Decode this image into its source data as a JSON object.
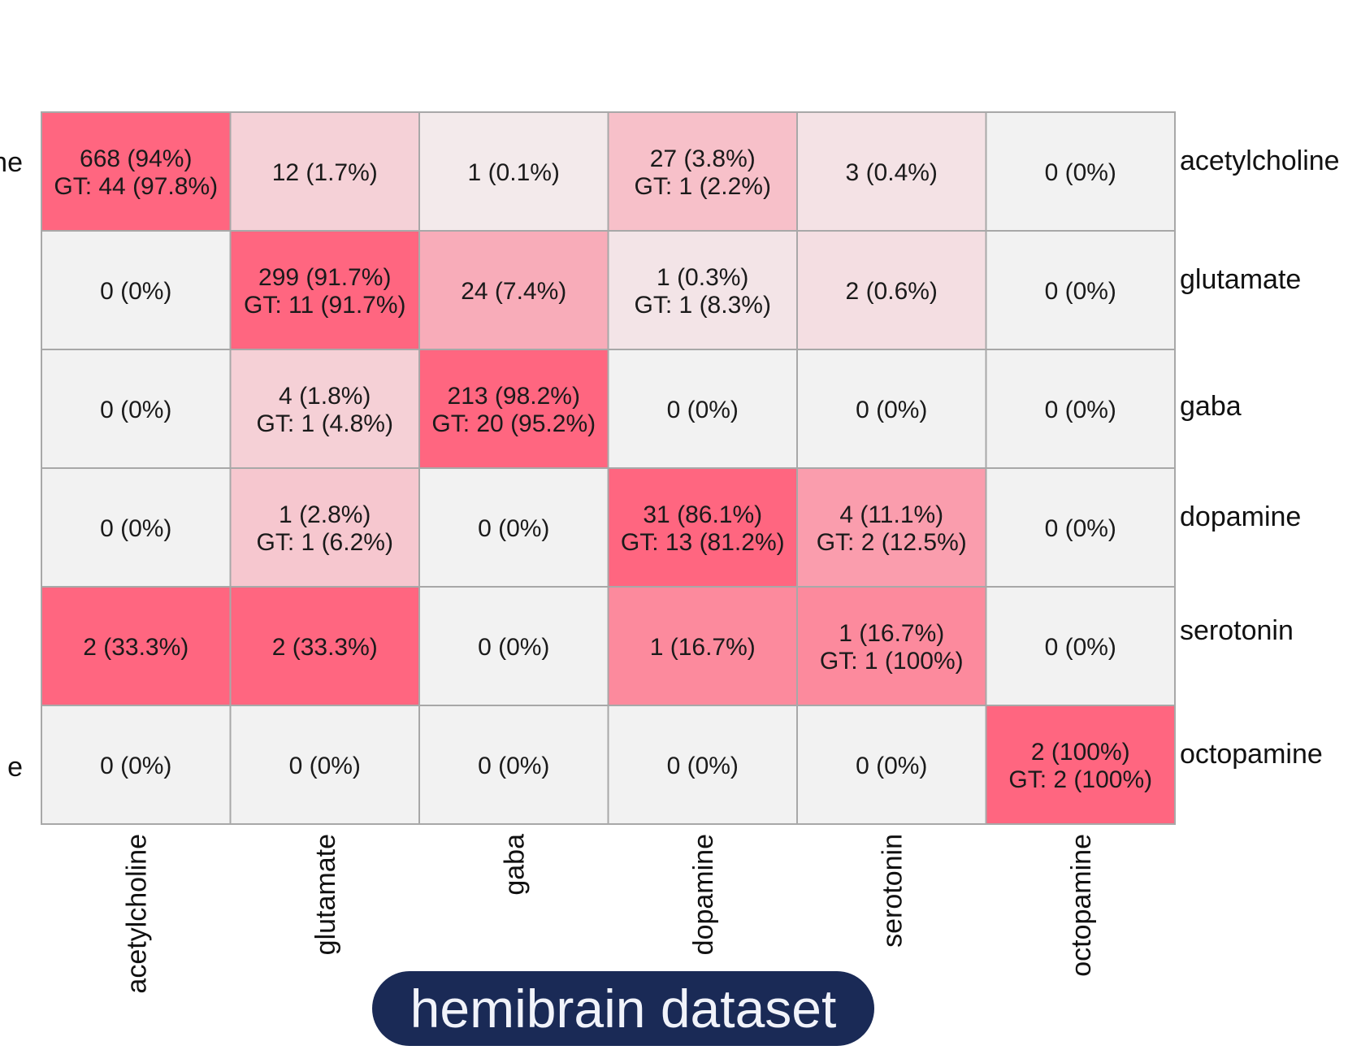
{
  "chart_data": {
    "type": "heatmap",
    "title": "hemibrain dataset",
    "row_labels": [
      "acetylcholine",
      "glutamate",
      "gaba",
      "dopamine",
      "serotonin",
      "octopamine"
    ],
    "col_labels": [
      "acetylcholine",
      "glutamate",
      "gaba",
      "dopamine",
      "serotonin",
      "octopamine"
    ],
    "left_labels_partial": [
      "ne",
      "",
      "",
      "",
      "",
      "e"
    ],
    "cells": [
      [
        {
          "count": 668,
          "pct": "94%",
          "gt": "44 (97.8%)"
        },
        {
          "count": 12,
          "pct": "1.7%",
          "gt": null
        },
        {
          "count": 1,
          "pct": "0.1%",
          "gt": null
        },
        {
          "count": 27,
          "pct": "3.8%",
          "gt": "1 (2.2%)"
        },
        {
          "count": 3,
          "pct": "0.4%",
          "gt": null
        },
        {
          "count": 0,
          "pct": "0%",
          "gt": null
        }
      ],
      [
        {
          "count": 0,
          "pct": "0%",
          "gt": null
        },
        {
          "count": 299,
          "pct": "91.7%",
          "gt": "11 (91.7%)"
        },
        {
          "count": 24,
          "pct": "7.4%",
          "gt": null
        },
        {
          "count": 1,
          "pct": "0.3%",
          "gt": "1 (8.3%)"
        },
        {
          "count": 2,
          "pct": "0.6%",
          "gt": null
        },
        {
          "count": 0,
          "pct": "0%",
          "gt": null
        }
      ],
      [
        {
          "count": 0,
          "pct": "0%",
          "gt": null
        },
        {
          "count": 4,
          "pct": "1.8%",
          "gt": "1 (4.8%)"
        },
        {
          "count": 213,
          "pct": "98.2%",
          "gt": "20 (95.2%)"
        },
        {
          "count": 0,
          "pct": "0%",
          "gt": null
        },
        {
          "count": 0,
          "pct": "0%",
          "gt": null
        },
        {
          "count": 0,
          "pct": "0%",
          "gt": null
        }
      ],
      [
        {
          "count": 0,
          "pct": "0%",
          "gt": null
        },
        {
          "count": 1,
          "pct": "2.8%",
          "gt": "1 (6.2%)"
        },
        {
          "count": 0,
          "pct": "0%",
          "gt": null
        },
        {
          "count": 31,
          "pct": "86.1%",
          "gt": "13 (81.2%)"
        },
        {
          "count": 4,
          "pct": "11.1%",
          "gt": "2 (12.5%)"
        },
        {
          "count": 0,
          "pct": "0%",
          "gt": null
        }
      ],
      [
        {
          "count": 2,
          "pct": "33.3%",
          "gt": null
        },
        {
          "count": 2,
          "pct": "33.3%",
          "gt": null
        },
        {
          "count": 0,
          "pct": "0%",
          "gt": null
        },
        {
          "count": 1,
          "pct": "16.7%",
          "gt": null
        },
        {
          "count": 1,
          "pct": "16.7%",
          "gt": "1 (100%)"
        },
        {
          "count": 0,
          "pct": "0%",
          "gt": null
        }
      ],
      [
        {
          "count": 0,
          "pct": "0%",
          "gt": null
        },
        {
          "count": 0,
          "pct": "0%",
          "gt": null
        },
        {
          "count": 0,
          "pct": "0%",
          "gt": null
        },
        {
          "count": 0,
          "pct": "0%",
          "gt": null
        },
        {
          "count": 0,
          "pct": "0%",
          "gt": null
        },
        {
          "count": 2,
          "pct": "100%",
          "gt": "2 (100%)"
        }
      ]
    ],
    "color_scale": {
      "low": "#f2f2f2",
      "high": "#ff6680",
      "saturation_at_pct": 30
    }
  },
  "gt_prefix": "GT: ",
  "colors": {
    "title_bg": "#1a2a56",
    "title_text": "#f1f3fa",
    "grid_border": "#a8a8a8"
  }
}
